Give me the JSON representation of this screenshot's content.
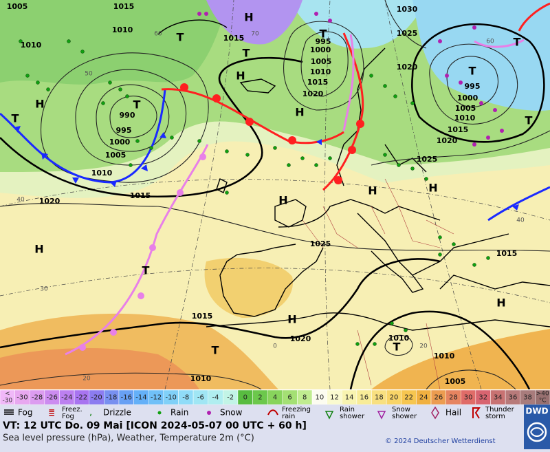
{
  "map": {
    "pressure_labels": [
      1005,
      1015,
      1010,
      1010,
      1015,
      995,
      1000,
      1005,
      1010,
      1015,
      1020,
      1030,
      1025,
      1020,
      995,
      1000,
      1005,
      1010,
      1015,
      1020,
      1025,
      990,
      995,
      1000,
      1005,
      1010,
      1015,
      1020,
      1025,
      1015,
      1015,
      1020,
      1010,
      1010,
      1010,
      1005
    ],
    "center_labels": [
      "H",
      "H",
      "H",
      "H",
      "H",
      "H",
      "H",
      "H",
      "H",
      "H",
      "T",
      "T",
      "T",
      "T",
      "T",
      "T",
      "T",
      "T",
      "T",
      "T",
      "T"
    ],
    "grid_labels": [
      60,
      70,
      50,
      40,
      30,
      20,
      0,
      60,
      40,
      20
    ]
  },
  "temperature_scale": {
    "below": [
      "<",
      "-30"
    ],
    "values": [
      -30,
      -28,
      -26,
      -24,
      -22,
      -20,
      -18,
      -16,
      -14,
      -12,
      -10,
      -8,
      -6,
      -4,
      -2,
      0,
      2,
      4,
      6,
      8,
      10,
      12,
      14,
      16,
      18,
      20,
      22,
      24,
      26,
      28,
      30,
      32,
      34,
      36,
      38
    ],
    "above": [
      ">40",
      "°C"
    ],
    "below_color": "#f0b8f8",
    "colors": [
      "#e8a8f0",
      "#dc9cf0",
      "#cc8cf0",
      "#bc80f0",
      "#a874f0",
      "#8c7cf0",
      "#7890f0",
      "#68a0f4",
      "#64b0f8",
      "#70c0f8",
      "#80d0f8",
      "#90dcf8",
      "#a0e6f4",
      "#b0eef0",
      "#c2f4e6",
      "#58bc40",
      "#6cc84c",
      "#88d45c",
      "#a4e074",
      "#c0ec90",
      "#fcfcf0",
      "#fafad0",
      "#f8f4b0",
      "#f8ec98",
      "#f8e080",
      "#f8d468",
      "#f6c650",
      "#f0b040",
      "#ec9c50",
      "#e68460",
      "#e06c68",
      "#d86470",
      "#c87272",
      "#b87a7a",
      "#a87c7c"
    ],
    "above_color": "#987070"
  },
  "weather_legend": [
    [
      "Fog"
    ],
    [
      "Freez.",
      "Fog"
    ],
    [
      "Drizzle"
    ],
    [
      "Rain"
    ],
    [
      "Snow"
    ],
    [
      "Freezing",
      "rain"
    ],
    [
      "Rain",
      "shower"
    ],
    [
      "Snow",
      "shower"
    ],
    [
      "Hail"
    ],
    [
      "Thunder",
      "storm"
    ]
  ],
  "footer": {
    "valid_time": "VT: 12 UTC Do.  09 Mai [ICON 2024-05-07  00 UTC + 60 h]",
    "description": "Sea level pressure (hPa), Weather, Temperature 2m (°C)",
    "copyright": "© 2024 Deutscher Wetterdienst",
    "logo": "DWD"
  }
}
